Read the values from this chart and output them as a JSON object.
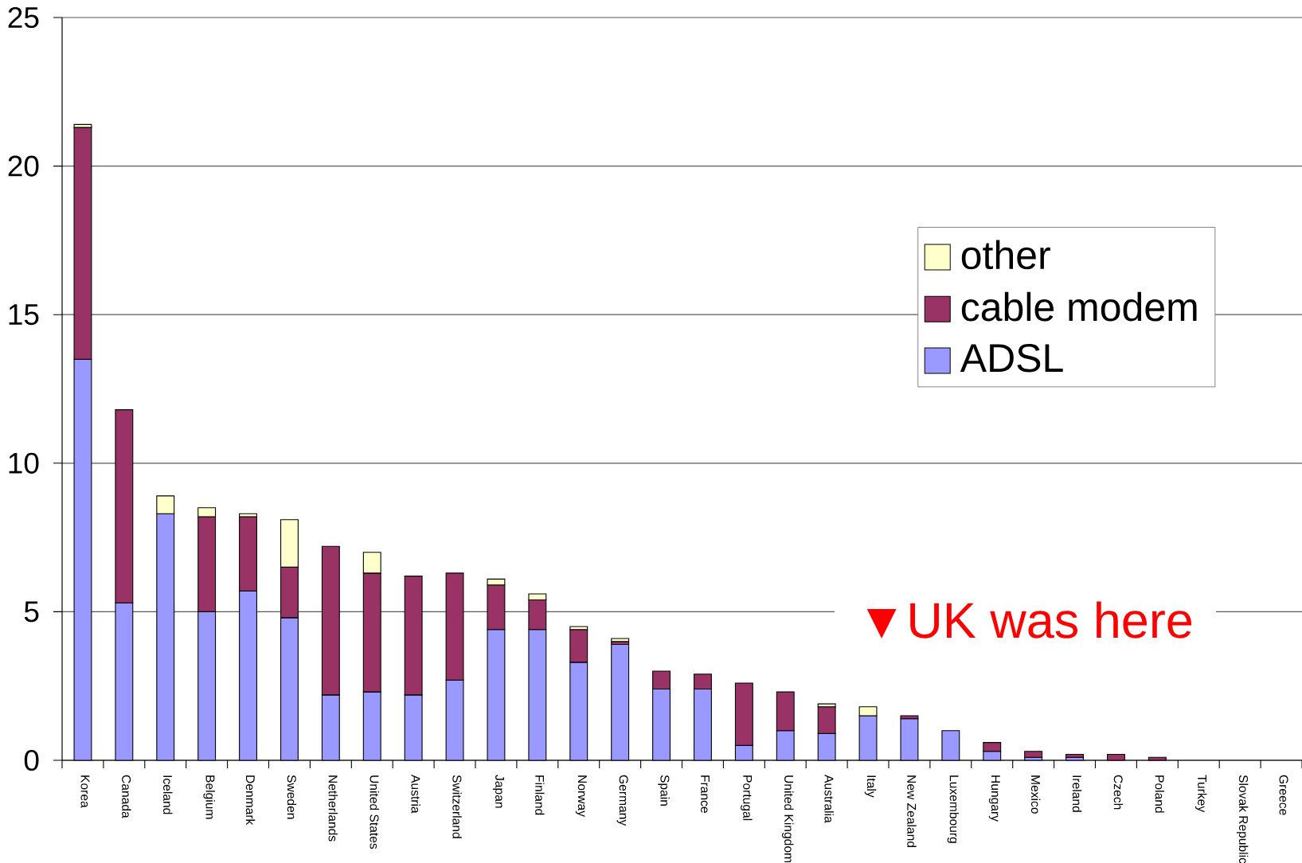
{
  "chart_data": {
    "type": "bar",
    "stacked": true,
    "categories": [
      "Korea",
      "Canada",
      "Iceland",
      "Belgium",
      "Denmark",
      "Sweden",
      "Netherlands",
      "United States",
      "Austria",
      "Switzerland",
      "Japan",
      "Finland",
      "Norway",
      "Germany",
      "Spain",
      "France",
      "Portugal",
      "United Kingdom",
      "Australia",
      "Italy",
      "New Zealand",
      "Luxembourg",
      "Hungary",
      "Mexico",
      "Ireland",
      "Czech",
      "Poland",
      "Turkey",
      "Slovak Republic",
      "Greece"
    ],
    "series": [
      {
        "name": "ADSL",
        "color": "#9999ff",
        "values": [
          13.5,
          5.3,
          8.3,
          5.0,
          5.7,
          4.8,
          2.2,
          2.3,
          2.2,
          2.7,
          4.4,
          4.4,
          3.3,
          3.9,
          2.4,
          2.4,
          0.5,
          1.0,
          0.9,
          1.5,
          1.4,
          1.0,
          0.3,
          0.1,
          0.1,
          0,
          0,
          0,
          0,
          0
        ]
      },
      {
        "name": "cable modem",
        "color": "#993366",
        "values": [
          7.8,
          6.5,
          0,
          3.2,
          2.5,
          1.7,
          5.0,
          4.0,
          4.0,
          3.6,
          1.5,
          1.0,
          1.1,
          0.1,
          0.6,
          0.5,
          2.1,
          1.3,
          0.9,
          0,
          0.1,
          0,
          0.3,
          0.2,
          0.1,
          0.2,
          0.1,
          0,
          0,
          0
        ]
      },
      {
        "name": "other",
        "color": "#ffffcc",
        "values": [
          0.1,
          0,
          0.6,
          0.3,
          0.1,
          1.6,
          0,
          0.7,
          0,
          0,
          0.2,
          0.2,
          0.1,
          0.1,
          0,
          0,
          0,
          0,
          0.1,
          0.3,
          0,
          0,
          0,
          0,
          0,
          0,
          0,
          0,
          0,
          0
        ]
      }
    ],
    "ylim": [
      0,
      25
    ],
    "yticks": [
      0,
      5,
      10,
      15,
      20,
      25
    ],
    "grid": "y",
    "legend": "right",
    "annotations": [
      "▼UK was here"
    ]
  }
}
